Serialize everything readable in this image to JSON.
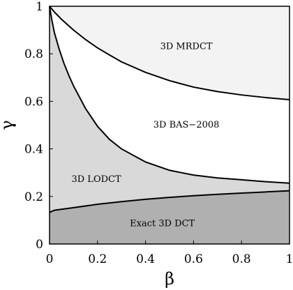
{
  "chart_data": {
    "type": "area",
    "xlabel": "β",
    "ylabel": "γ",
    "xlim": [
      0,
      1
    ],
    "ylim": [
      0,
      1
    ],
    "grid": false,
    "x_ticks": [
      "0",
      "0.2",
      "0.4",
      "0.6",
      "0.8",
      "1"
    ],
    "y_ticks": [
      "0",
      "0.2",
      "0.4",
      "0.6",
      "0.8",
      "1"
    ],
    "boundaries": [
      {
        "id": "exact-lodct",
        "x": [
          0,
          0.02,
          0.1,
          0.2,
          0.3,
          0.4,
          0.5,
          0.6,
          0.7,
          0.8,
          0.9,
          1.0
        ],
        "y": [
          0.133,
          0.142,
          0.153,
          0.167,
          0.178,
          0.188,
          0.196,
          0.203,
          0.209,
          0.214,
          0.219,
          0.224
        ]
      },
      {
        "id": "lodct-bas2008",
        "x": [
          0,
          0.01,
          0.02,
          0.04,
          0.06,
          0.08,
          0.1,
          0.15,
          0.2,
          0.25,
          0.3,
          0.4,
          0.5,
          0.6,
          0.7,
          0.8,
          0.9,
          1.0
        ],
        "y": [
          1.0,
          0.94,
          0.89,
          0.82,
          0.76,
          0.71,
          0.665,
          0.57,
          0.495,
          0.44,
          0.4,
          0.345,
          0.31,
          0.29,
          0.278,
          0.27,
          0.262,
          0.256
        ]
      },
      {
        "id": "bas2008-mrdct",
        "x": [
          0,
          0.02,
          0.05,
          0.1,
          0.15,
          0.2,
          0.25,
          0.3,
          0.4,
          0.5,
          0.6,
          0.7,
          0.8,
          0.9,
          1.0
        ],
        "y": [
          1.0,
          0.976,
          0.945,
          0.9,
          0.86,
          0.825,
          0.795,
          0.766,
          0.722,
          0.687,
          0.66,
          0.641,
          0.627,
          0.616,
          0.607
        ]
      }
    ],
    "regions": [
      {
        "label": "3D MRDCT",
        "label_x": 0.57,
        "label_y": 0.835,
        "fill": "#f3f3f3"
      },
      {
        "label": "3D BAS−2008",
        "label_x": 0.57,
        "label_y": 0.505,
        "fill": "#ffffff"
      },
      {
        "label": "3D LODCT",
        "label_x": 0.195,
        "label_y": 0.275,
        "fill": "#d9d9d9"
      },
      {
        "label": "Exact 3D DCT",
        "label_x": 0.47,
        "label_y": 0.09,
        "fill": "#b0b0b0"
      }
    ]
  }
}
